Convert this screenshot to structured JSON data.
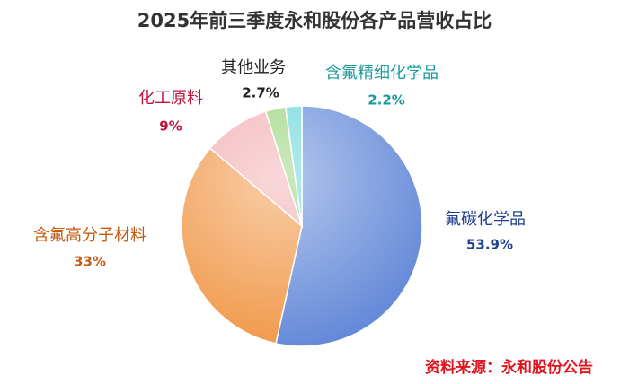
{
  "chart_data": {
    "type": "pie",
    "title": "2025年前三季度永和股份各产品营收占比",
    "categories": [
      "氟碳化学品",
      "含氟高分子材料",
      "化工原料",
      "其他业务",
      "含氟精细化学品"
    ],
    "values": [
      53.9,
      33,
      9,
      2.7,
      2.2
    ],
    "value_labels": [
      "53.9%",
      "33%",
      "9%",
      "2.7%",
      "2.2%"
    ],
    "colors": [
      "#5b82d6",
      "#f0923e",
      "#f0a7ad",
      "#8fcf6f",
      "#5cd3d6"
    ],
    "label_colors": [
      "#1f3f8f",
      "#c55a11",
      "#c0143c",
      "#222222",
      "#1a9a9a"
    ],
    "source": "资料来源：永和股份公告"
  }
}
